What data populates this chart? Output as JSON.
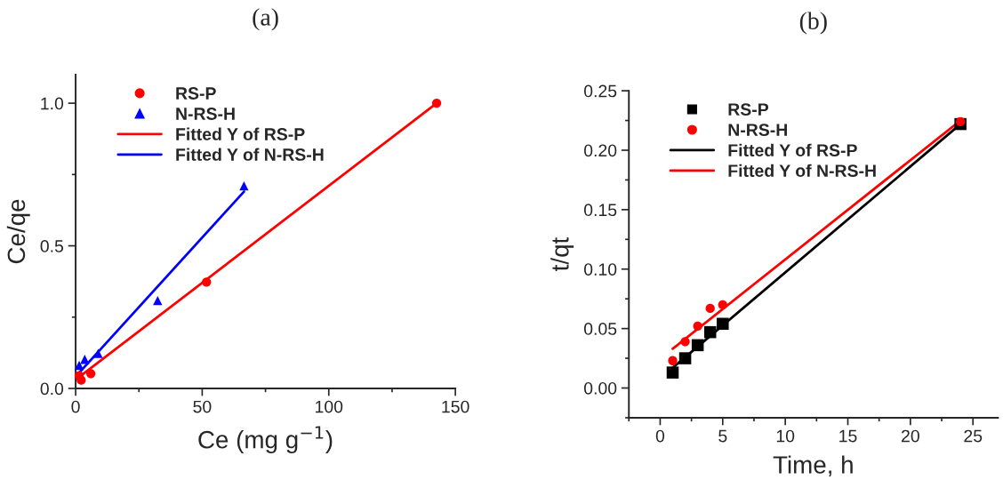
{
  "chart_data": [
    {
      "type": "scatter",
      "title": "(a)",
      "xlabel": "Ce (mg g$^{−1}$)",
      "ylabel": "Ce/qe",
      "xlim": [
        0,
        150
      ],
      "ylim": [
        0,
        1.1
      ],
      "xticks": [
        0,
        50,
        100,
        150
      ],
      "yticks": [
        {
          "value": 0,
          "label": "0.0"
        },
        0.5,
        {
          "value": 1,
          "label": "1.0"
        }
      ],
      "grid": false,
      "legend": "top left",
      "series": [
        {
          "name": "RS-P",
          "marker": "circle",
          "color": "#ff0000",
          "x": [
            1.4,
            2.2,
            6,
            51.7,
            142.6
          ],
          "values": [
            0.045,
            0.029,
            0.052,
            0.373,
            1.0
          ]
        },
        {
          "name": "N-RS-H",
          "marker": "triangle",
          "color": "#0000ff",
          "x": [
            1.4,
            3.6,
            8.9,
            32.4,
            66.5
          ],
          "values": [
            0.081,
            0.102,
            0.123,
            0.308,
            0.71
          ]
        },
        {
          "name": "Fitted Y of RS-P",
          "type": "line",
          "marker": "none",
          "line_style": "solid",
          "color": "#ff0000",
          "x": [
            1.4,
            142.6
          ],
          "values": [
            0.04,
            1.0
          ]
        },
        {
          "name": "Fitted Y of N-RS-H",
          "type": "line",
          "marker": "none",
          "line_style": "solid",
          "color": "#0000ff",
          "x": [
            1.4,
            66.5
          ],
          "values": [
            0.055,
            0.69
          ]
        }
      ]
    },
    {
      "type": "scatter",
      "title": "(b)",
      "xlabel": "Time, h",
      "ylabel": "t/qt",
      "xlim": [
        -2.5,
        27
      ],
      "ylim": [
        -0.025,
        0.25
      ],
      "xticks": [
        0,
        5,
        10,
        15,
        20,
        25
      ],
      "yticks": [
        {
          "value": 0,
          "label": "0.00"
        },
        0.05,
        {
          "value": 0.1,
          "label": "0.10"
        },
        0.15,
        {
          "value": 0.2,
          "label": "0.20"
        },
        0.25
      ],
      "grid": false,
      "legend": "top left",
      "series": [
        {
          "name": "RS-P",
          "marker": "square",
          "color": "#000000",
          "x": [
            1,
            2,
            3,
            4,
            5,
            24
          ],
          "values": [
            0.013,
            0.025,
            0.036,
            0.047,
            0.054,
            0.222
          ]
        },
        {
          "name": "N-RS-H",
          "marker": "circle",
          "color": "#ff0000",
          "x": [
            1,
            2,
            3,
            4,
            5,
            24
          ],
          "values": [
            0.023,
            0.039,
            0.052,
            0.067,
            0.07,
            0.224
          ]
        },
        {
          "name": "Fitted Y of RS-P",
          "type": "line",
          "marker": "none",
          "line_style": "solid",
          "color": "#000000",
          "x": [
            1,
            24
          ],
          "values": [
            0.017,
            0.222
          ]
        },
        {
          "name": "Fitted Y of N-RS-H",
          "type": "line",
          "marker": "none",
          "line_style": "solid",
          "color": "#ff0000",
          "x": [
            1,
            24
          ],
          "values": [
            0.033,
            0.225
          ]
        }
      ]
    }
  ]
}
